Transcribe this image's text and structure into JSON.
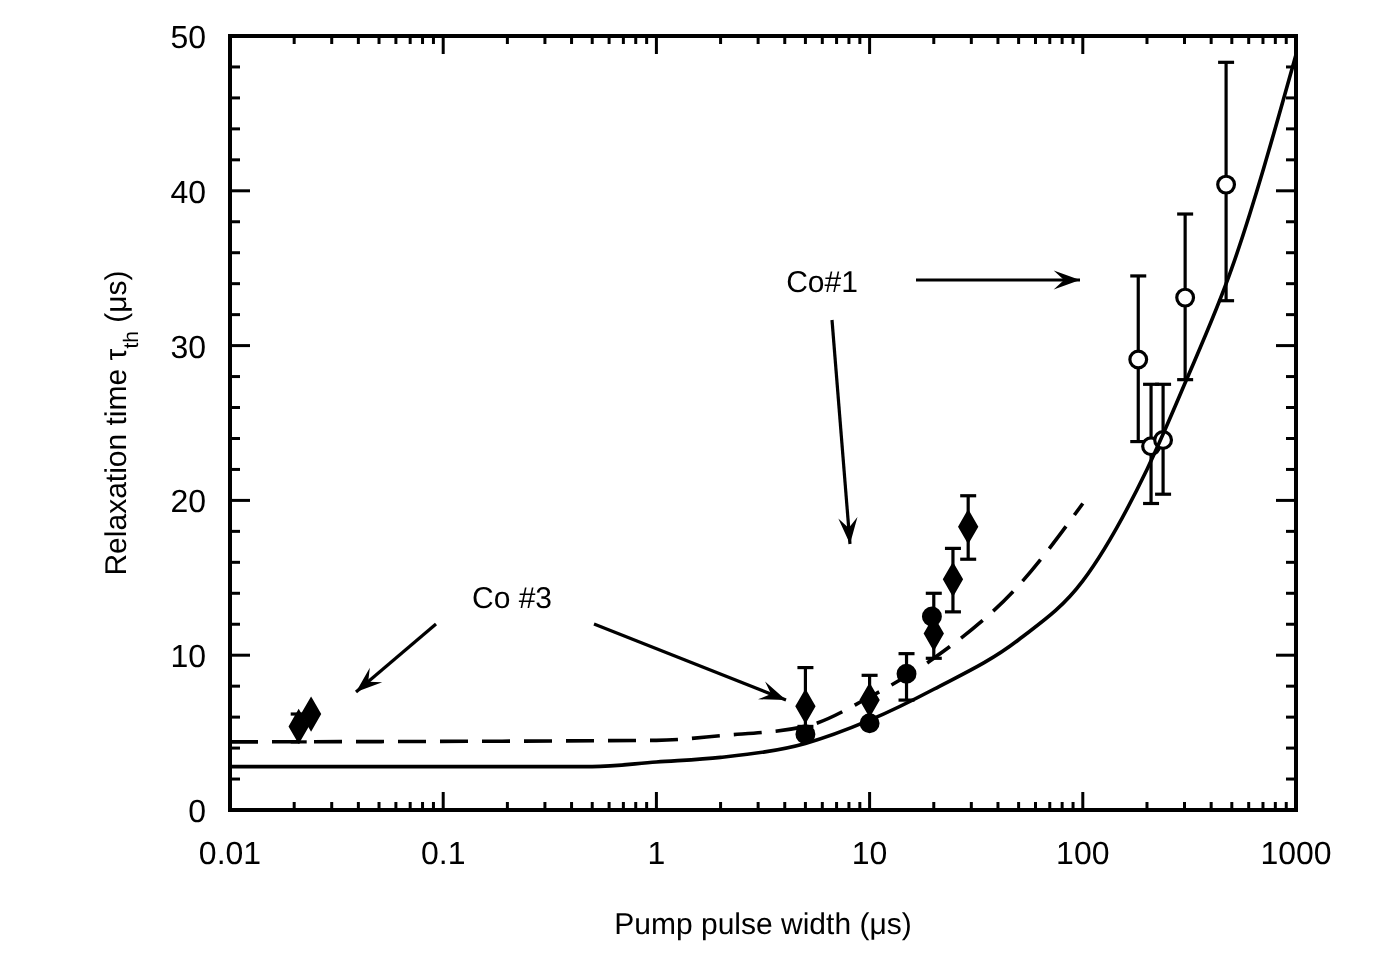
{
  "chart_data": {
    "type": "scatter",
    "xlabel": "Pump pulse width (μs)",
    "ylabel": "Relaxation time τ$_{th}$ (μs)",
    "log": "x",
    "xlim": [
      0.01,
      1000
    ],
    "xticks": [
      0.01,
      0.1,
      1,
      10,
      100,
      1000
    ],
    "ylim": [
      0,
      50
    ],
    "yticks": [
      0,
      10,
      20,
      30,
      40,
      50
    ],
    "grid": false,
    "annotations": [
      "Co#1",
      "Co #3"
    ],
    "series": [
      {
        "marker": "diamond",
        "color": "#000000",
        "x": [
          0.021,
          0.024,
          5,
          10,
          20,
          24.6,
          29
        ],
        "values": [
          5.4,
          6.2,
          6.7,
          7.1,
          11.4,
          14.9,
          18.3
        ],
        "errors": [
          [
            4.4,
            6.2
          ],
          null,
          [
            5.4,
            9.2
          ],
          [
            7.1,
            8.7
          ],
          [
            9.8,
            14
          ],
          [
            12.8,
            16.9
          ],
          [
            16.2,
            20.3
          ]
        ]
      },
      {
        "marker": "circle",
        "color": "#000000",
        "x": [
          5,
          10,
          14.9,
          19.6
        ],
        "values": [
          4.9,
          5.6,
          8.8,
          12.5
        ],
        "errors": [
          null,
          null,
          [
            7.1,
            10.1
          ],
          null
        ]
      },
      {
        "marker": "circle",
        "color": "#ffffff",
        "x": [
          182,
          209,
          238,
          302,
          470
        ],
        "values": [
          29.1,
          23.5,
          23.9,
          33.1,
          40.4
        ],
        "errors": [
          [
            23.8,
            34.5
          ],
          [
            19.8,
            27.5
          ],
          [
            20.4,
            27.5
          ],
          [
            27.8,
            38.5
          ],
          [
            32.9,
            48.3
          ]
        ]
      },
      {
        "type": "line",
        "marker": "none",
        "line_style": "solid",
        "color": "#000000",
        "x": [
          0.01,
          0.5,
          1,
          2,
          5,
          10,
          20,
          50,
          100,
          200,
          300,
          500,
          1000
        ],
        "values": [
          2.8,
          2.8,
          3.1,
          3.4,
          4.3,
          5.8,
          7.8,
          11,
          14.8,
          22,
          27.5,
          35,
          48.8
        ]
      },
      {
        "type": "line",
        "marker": "none",
        "line_style": "dashed",
        "color": "#000000",
        "x": [
          0.01,
          1,
          2,
          5,
          10,
          20,
          50,
          100
        ],
        "values": [
          4.4,
          4.5,
          4.8,
          5.4,
          7.3,
          9.8,
          14.5,
          19.8
        ]
      }
    ]
  }
}
